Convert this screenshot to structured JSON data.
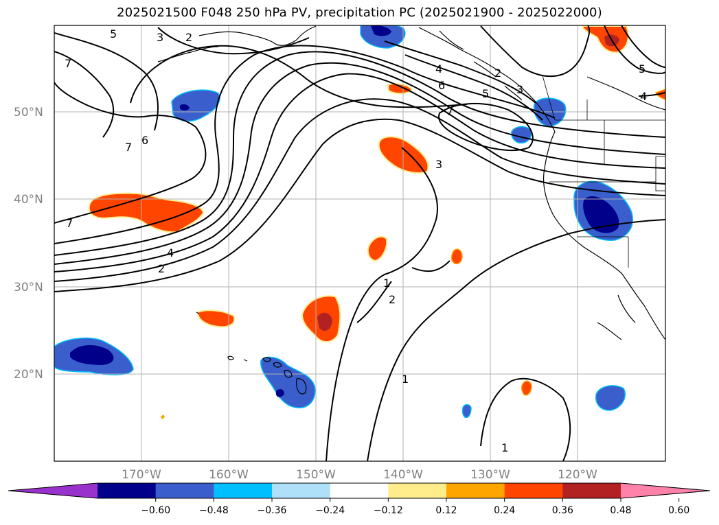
{
  "title": "2025021500 F048 250 hPa PV, precipitation PC (2025021900 - 2025022000)",
  "map": {
    "lat_labels": [
      "50°N",
      "40°N",
      "30°N",
      "20°N"
    ],
    "lon_labels": [
      "170°W",
      "160°W",
      "150°W",
      "140°W",
      "130°W",
      "120°W"
    ],
    "contour_labels": [
      "5",
      "3",
      "2",
      "7",
      "6",
      "7",
      "7",
      "4",
      "2",
      "4",
      "6",
      "2",
      "3",
      "5",
      "7",
      "3",
      "1",
      "2",
      "1",
      "1",
      "5",
      "4"
    ]
  },
  "colorbar": {
    "tick_labels": [
      "−0.60",
      "−0.48",
      "−0.36",
      "−0.24",
      "−0.12",
      "0.12",
      "0.24",
      "0.36",
      "0.48",
      "0.60"
    ],
    "colors": [
      "#9932cc",
      "#00008b",
      "#3a5fcd",
      "#00bfff",
      "#afe0fa",
      "#ffffff",
      "#ffec8b",
      "#ffa500",
      "#ff4500",
      "#b22222",
      "#ff82ab"
    ]
  }
}
